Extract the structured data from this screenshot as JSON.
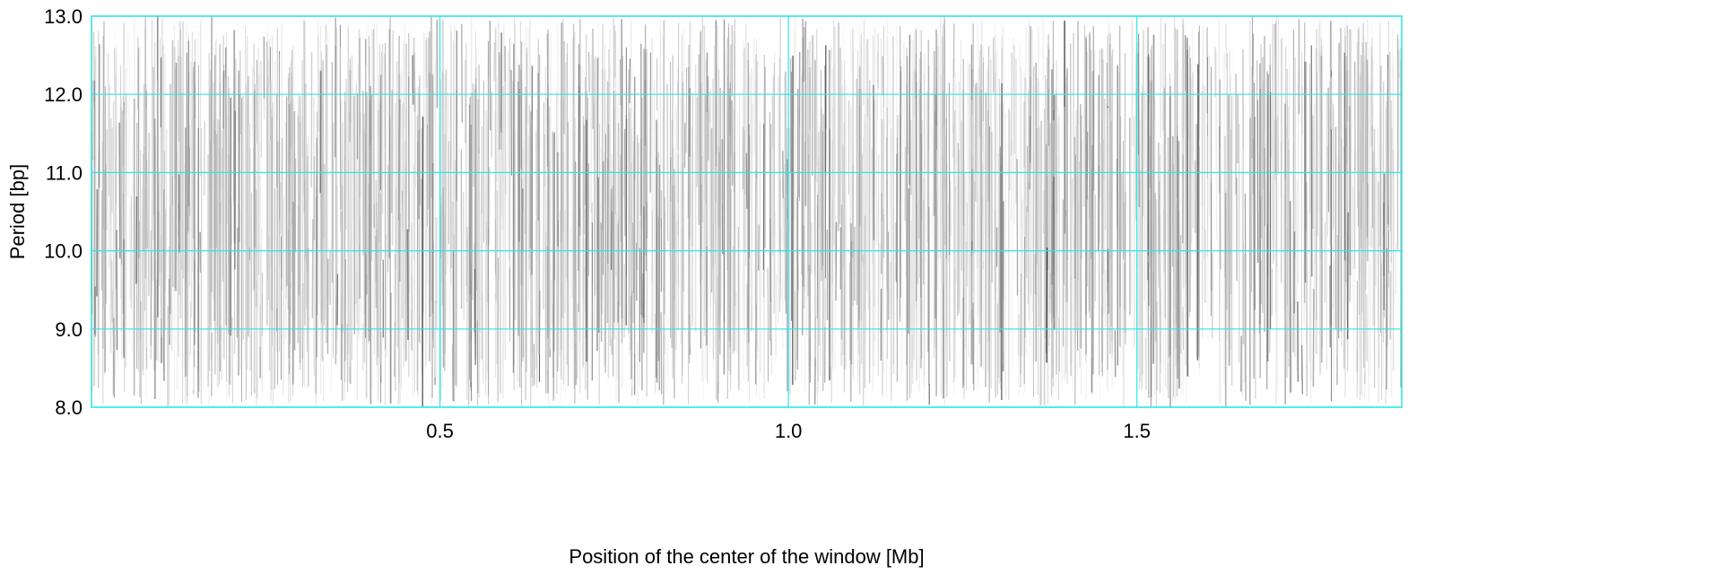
{
  "chart_data": {
    "type": "heatmap",
    "title": "",
    "xlabel": "Position of the center of the window [Mb]",
    "ylabel": "Period [bp]",
    "xlim": [
      0.0,
      1.88
    ],
    "ylim": [
      8.0,
      13.0
    ],
    "x_ticks": [
      {
        "value": 0.5,
        "label": "0.5"
      },
      {
        "value": 1.0,
        "label": "1.0"
      },
      {
        "value": 1.5,
        "label": "1.5"
      }
    ],
    "y_ticks": [
      {
        "value": 8.0,
        "label": "8.0"
      },
      {
        "value": 9.0,
        "label": "9.0"
      },
      {
        "value": 10.0,
        "label": "10.0"
      },
      {
        "value": 11.0,
        "label": "11.0"
      },
      {
        "value": 12.0,
        "label": "12.0"
      },
      {
        "value": 13.0,
        "label": "13.0"
      }
    ],
    "grid": true,
    "colors": {
      "grid": "#2ee6e6",
      "frame": "#2ee6e6",
      "intensity_high": "#000000",
      "intensity_low": "#ffffff"
    }
  }
}
